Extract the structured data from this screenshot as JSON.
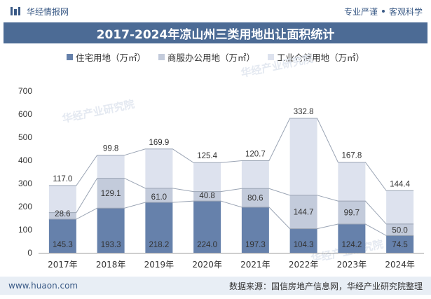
{
  "header": {
    "brand": "华经情报网",
    "tag1": "专业严谨",
    "tag2": "客观科学"
  },
  "colors": {
    "residential": "#6681ab",
    "commercial": "#c3cbdb",
    "industrial": "#dde2ee",
    "title_bg": "#4c6b95"
  },
  "chart_data": {
    "type": "bar",
    "stacked": true,
    "title": "2017-2024年凉山州三类用地出让面积统计",
    "categories": [
      "2017年",
      "2018年",
      "2019年",
      "2020年",
      "2021年",
      "2022年",
      "2023年",
      "2024年"
    ],
    "series": [
      {
        "name": "住宅用地（万㎡）",
        "values": [
          145.3,
          193.3,
          218.2,
          224.0,
          197.3,
          104.3,
          124.2,
          74.5
        ]
      },
      {
        "name": "商服办公用地（万㎡）",
        "values": [
          28.6,
          129.1,
          61.0,
          40.8,
          80.6,
          144.7,
          99.7,
          50.0
        ]
      },
      {
        "name": "工业仓储用地（万㎡）",
        "values": [
          117.0,
          99.8,
          169.9,
          125.4,
          120.7,
          332.8,
          167.8,
          144.4
        ]
      }
    ],
    "series_labels": [
      [
        "145.3",
        "193.3",
        "218.2",
        "224.0",
        "197.3",
        "104.3",
        "124.2",
        "74.5"
      ],
      [
        "28.6",
        "129.1",
        "61.0",
        "40.8",
        "80.6",
        "144.7",
        "99.7",
        "50.0"
      ],
      [
        "117.0",
        "99.8",
        "169.9",
        "125.4",
        "120.7",
        "332.8",
        "167.8",
        "144.4"
      ]
    ],
    "ylim": [
      0,
      700
    ],
    "yticks": [
      0,
      100,
      200,
      300,
      400,
      500,
      600,
      700
    ],
    "legend_position": "top-center",
    "grid": false
  },
  "watermark": "华经产业研究院",
  "footer": {
    "url": "www.huaon.com",
    "source": "数据来源：国信房地产信息网，华经产业研究院整理"
  }
}
